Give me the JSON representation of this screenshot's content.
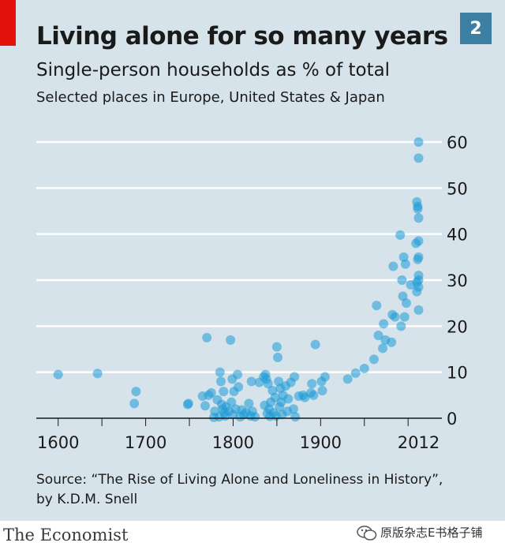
{
  "badge": "2",
  "footer": {
    "logo_text": "The Economist",
    "watermark_text": "原版杂志E书格子铺",
    "watermark_icon": "wechat-icon"
  },
  "colors": {
    "background": "#d6e3ea",
    "dots": "#1e9bd7",
    "brand_red": "#e3120b",
    "badge": "#3d7fa3"
  },
  "chart_data": {
    "type": "scatter",
    "title": "Living alone for so many years",
    "subtitle": "Single-person households as % of total",
    "subtitle2": "Selected places in Europe, United States & Japan",
    "source": "Source: “The Rise of Living Alone and Loneliness in History”, by K.D.M. Snell",
    "xlabel": "",
    "ylabel": "",
    "xlim": [
      1575,
      2035
    ],
    "ylim": [
      0,
      60
    ],
    "x_ticks": [
      1600,
      1700,
      1800,
      1900,
      2012
    ],
    "y_ticks": [
      0,
      10,
      20,
      30,
      40,
      50,
      60
    ],
    "y_axis_side": "right",
    "grid": "horizontal",
    "points": [
      [
        1600,
        9.5
      ],
      [
        1645,
        9.7
      ],
      [
        1687,
        3.2
      ],
      [
        1689,
        5.8
      ],
      [
        1748,
        3.0
      ],
      [
        1749,
        3.2
      ],
      [
        1765,
        4.8
      ],
      [
        1768,
        2.7
      ],
      [
        1770,
        17.5
      ],
      [
        1772,
        5.0
      ],
      [
        1775,
        5.5
      ],
      [
        1778,
        0.2
      ],
      [
        1779,
        1.5
      ],
      [
        1782,
        4.0
      ],
      [
        1784,
        0.3
      ],
      [
        1785,
        10.0
      ],
      [
        1786,
        8.0
      ],
      [
        1787,
        3.0
      ],
      [
        1788,
        2.0
      ],
      [
        1789,
        5.8
      ],
      [
        1790,
        1.2
      ],
      [
        1791,
        0.5
      ],
      [
        1792,
        2.5
      ],
      [
        1795,
        1.5
      ],
      [
        1797,
        17.0
      ],
      [
        1798,
        3.5
      ],
      [
        1799,
        8.5
      ],
      [
        1800,
        0.8
      ],
      [
        1801,
        5.8
      ],
      [
        1803,
        2.0
      ],
      [
        1805,
        9.5
      ],
      [
        1806,
        6.8
      ],
      [
        1808,
        0.3
      ],
      [
        1810,
        1.8
      ],
      [
        1812,
        0.8
      ],
      [
        1815,
        1.2
      ],
      [
        1818,
        3.2
      ],
      [
        1820,
        0.5
      ],
      [
        1821,
        8.0
      ],
      [
        1822,
        1.5
      ],
      [
        1825,
        0.3
      ],
      [
        1830,
        7.8
      ],
      [
        1835,
        9.0
      ],
      [
        1836,
        2.8
      ],
      [
        1837,
        9.5
      ],
      [
        1838,
        8.5
      ],
      [
        1839,
        1.0
      ],
      [
        1840,
        7.5
      ],
      [
        1841,
        2.0
      ],
      [
        1842,
        0.4
      ],
      [
        1843,
        3.5
      ],
      [
        1845,
        6.0
      ],
      [
        1846,
        1.2
      ],
      [
        1848,
        4.5
      ],
      [
        1849,
        0.5
      ],
      [
        1850,
        15.5
      ],
      [
        1851,
        13.2
      ],
      [
        1852,
        8.0
      ],
      [
        1853,
        2.5
      ],
      [
        1854,
        6.5
      ],
      [
        1855,
        3.5
      ],
      [
        1856,
        0.8
      ],
      [
        1857,
        5.0
      ],
      [
        1860,
        7.0
      ],
      [
        1862,
        1.5
      ],
      [
        1863,
        4.2
      ],
      [
        1866,
        7.8
      ],
      [
        1869,
        2.0
      ],
      [
        1870,
        9.0
      ],
      [
        1871,
        0.3
      ],
      [
        1875,
        4.8
      ],
      [
        1880,
        5.0
      ],
      [
        1882,
        4.5
      ],
      [
        1889,
        5.5
      ],
      [
        1890,
        7.5
      ],
      [
        1892,
        5.0
      ],
      [
        1894,
        16.0
      ],
      [
        1901,
        8.0
      ],
      [
        1902,
        6.0
      ],
      [
        1905,
        9.0
      ],
      [
        1931,
        8.5
      ],
      [
        1940,
        9.8
      ],
      [
        1950,
        10.8
      ],
      [
        1961,
        12.8
      ],
      [
        1964,
        24.5
      ],
      [
        1966,
        18.0
      ],
      [
        1971,
        15.2
      ],
      [
        1972,
        20.5
      ],
      [
        1974,
        17.0
      ],
      [
        1981,
        16.5
      ],
      [
        1982,
        22.5
      ],
      [
        1983,
        33.0
      ],
      [
        1985,
        22.0
      ],
      [
        1991,
        39.8
      ],
      [
        1992,
        20.0
      ],
      [
        1993,
        30.0
      ],
      [
        1994,
        26.5
      ],
      [
        1995,
        35.0
      ],
      [
        1996,
        22.0
      ],
      [
        1997,
        33.5
      ],
      [
        1998,
        25.0
      ],
      [
        2003,
        29.0
      ],
      [
        2010,
        47.0
      ],
      [
        2011,
        45.5
      ],
      [
        2012,
        60.0
      ],
      [
        2012,
        56.5
      ],
      [
        2012,
        43.5
      ],
      [
        2012,
        38.5
      ],
      [
        2012,
        35.0
      ],
      [
        2012,
        31.0
      ],
      [
        2012,
        30.0
      ],
      [
        2012,
        28.5
      ],
      [
        2012,
        23.5
      ],
      [
        2011,
        34.5
      ],
      [
        2010,
        29.5
      ],
      [
        2009,
        38.0
      ],
      [
        2011,
        46.0
      ],
      [
        2010,
        27.5
      ]
    ]
  }
}
